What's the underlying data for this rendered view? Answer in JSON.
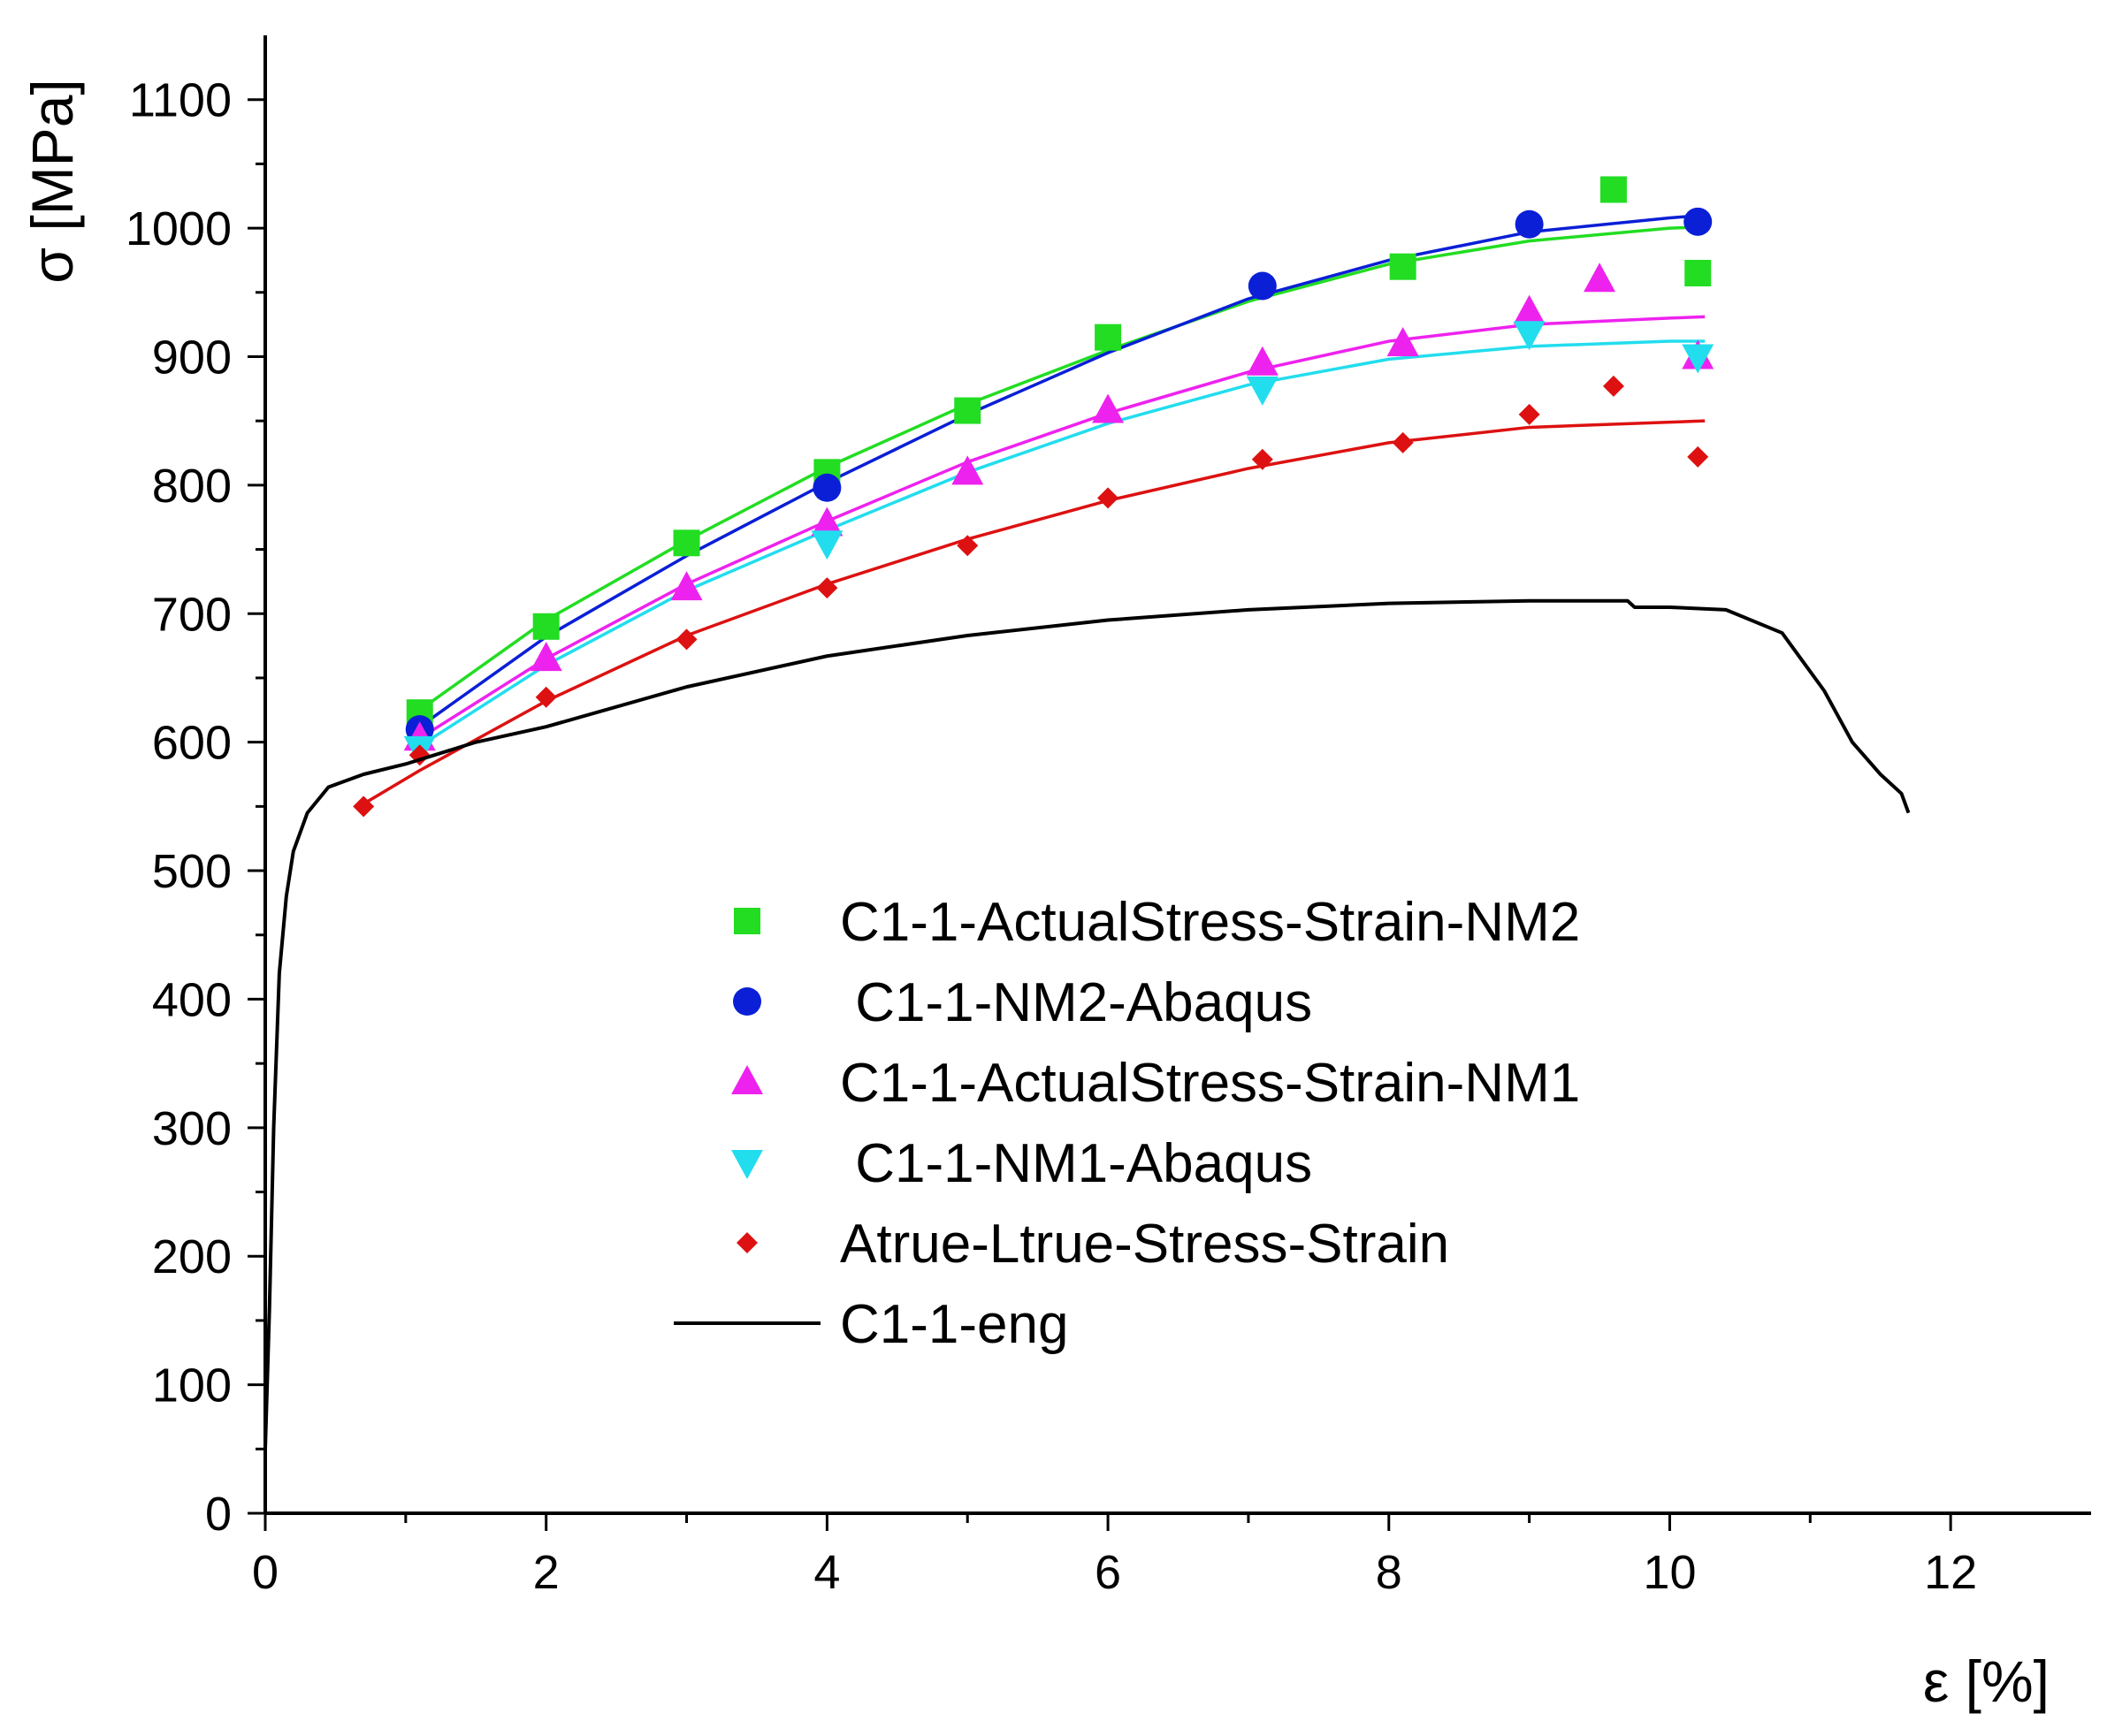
{
  "chart_data": {
    "type": "scatter",
    "title": "",
    "xlabel": "ε [%]",
    "ylabel": "σ [MPa]",
    "xlim": [
      0,
      13
    ],
    "ylim": [
      0,
      1150
    ],
    "xticks": [
      0,
      2,
      4,
      6,
      8,
      10,
      12
    ],
    "xtick_labels": [
      "0",
      "2",
      "4",
      "6",
      "8",
      "10",
      "12"
    ],
    "yticks": [
      0,
      100,
      200,
      300,
      400,
      500,
      600,
      700,
      800,
      900,
      1000,
      1100
    ],
    "ytick_labels": [
      "0",
      "100",
      "200",
      "300",
      "400",
      "500",
      "600",
      "700",
      "800",
      "900",
      "1000",
      "1100"
    ],
    "grid": false,
    "legend_position": "center-right",
    "series": [
      {
        "name": "C1-1-ActualStress-Strain-NM2",
        "marker": "square",
        "color": "#22dd22",
        "x": [
          1.1,
          2.0,
          3.0,
          4.0,
          5.0,
          6.0,
          8.1,
          9.6,
          10.2
        ],
        "y": [
          623,
          690,
          755,
          810,
          858,
          915,
          970,
          1030,
          965
        ]
      },
      {
        "name": " C1-1-NM2-Abaqus",
        "marker": "circle",
        "color": "#0a1fd6",
        "x": [
          1.1,
          4.0,
          7.1,
          9.0,
          10.2
        ],
        "y": [
          610,
          798,
          955,
          1003,
          1005
        ]
      },
      {
        "name": "C1-1-ActualStress-Strain-NM1",
        "marker": "triangle-up",
        "color": "#ee22ee",
        "x": [
          1.1,
          2.0,
          3.0,
          4.0,
          5.0,
          6.0,
          7.1,
          8.1,
          9.0,
          9.5,
          10.2
        ],
        "y": [
          603,
          665,
          720,
          770,
          810,
          858,
          895,
          910,
          935,
          960,
          900
        ]
      },
      {
        "name": " C1-1-NM1-Abaqus",
        "marker": "triangle-down",
        "color": "#22ddee",
        "x": [
          1.1,
          4.0,
          7.1,
          9.0,
          10.2
        ],
        "y": [
          595,
          755,
          875,
          918,
          900
        ]
      },
      {
        "name": "Atrue-Ltrue-Stress-Strain",
        "marker": "diamond",
        "color": "#dd1111",
        "x": [
          0.7,
          1.1,
          2.0,
          3.0,
          4.0,
          5.0,
          6.0,
          7.1,
          8.1,
          9.0,
          9.6,
          10.2
        ],
        "y": [
          550,
          590,
          635,
          680,
          720,
          753,
          790,
          820,
          833,
          855,
          877,
          822
        ]
      },
      {
        "name": "C1-1-eng",
        "marker": "line",
        "color": "#000000",
        "x": [
          0,
          0.03,
          0.06,
          0.1,
          0.15,
          0.2,
          0.3,
          0.45,
          0.7,
          1.0,
          1.5,
          2.0,
          3.0,
          4.0,
          5.0,
          6.0,
          7.0,
          8.0,
          9.0,
          9.7,
          9.75,
          10.0,
          10.4,
          10.8,
          11.1,
          11.3,
          11.5,
          11.65,
          11.7
        ],
        "y": [
          50,
          160,
          300,
          420,
          480,
          515,
          545,
          565,
          575,
          583,
          600,
          612,
          643,
          667,
          683,
          695,
          703,
          708,
          710,
          710,
          705,
          705,
          703,
          685,
          640,
          600,
          575,
          560,
          545
        ]
      }
    ],
    "fit_curves": [
      {
        "series": "C1-1-ActualStress-Strain-NM2",
        "color": "#22dd22",
        "x": [
          1.1,
          2,
          3,
          4,
          5,
          6,
          7,
          8,
          9,
          10,
          10.25
        ],
        "y": [
          625,
          695,
          757,
          814,
          863,
          905,
          943,
          972,
          990,
          1000,
          1001
        ]
      },
      {
        "series": " C1-1-NM2-Abaqus",
        "color": "#0a1fd6",
        "x": [
          1.1,
          2,
          3,
          4,
          5,
          6,
          7,
          8,
          9,
          10,
          10.25
        ],
        "y": [
          612,
          682,
          745,
          802,
          855,
          903,
          945,
          975,
          997,
          1008,
          1010
        ]
      },
      {
        "series": "C1-1-ActualStress-Strain-NM1",
        "color": "#ee22ee",
        "x": [
          1.1,
          2,
          3,
          4,
          5,
          6,
          7,
          8,
          9,
          10,
          10.25
        ],
        "y": [
          603,
          665,
          723,
          772,
          818,
          856,
          888,
          912,
          925,
          930,
          931
        ]
      },
      {
        "series": " C1-1-NM1-Abaqus",
        "color": "#22ddee",
        "x": [
          1.1,
          2,
          3,
          4,
          5,
          6,
          7,
          8,
          9,
          10,
          10.25
        ],
        "y": [
          597,
          660,
          718,
          765,
          810,
          848,
          878,
          898,
          908,
          912,
          912
        ]
      },
      {
        "series": "Atrue-Ltrue-Stress-Strain",
        "color": "#dd1111",
        "x": [
          0.7,
          1.1,
          2,
          3,
          4,
          5,
          6,
          7,
          8,
          9,
          10,
          10.25
        ],
        "y": [
          552,
          578,
          632,
          683,
          723,
          758,
          788,
          813,
          833,
          845,
          849,
          850
        ]
      }
    ]
  }
}
